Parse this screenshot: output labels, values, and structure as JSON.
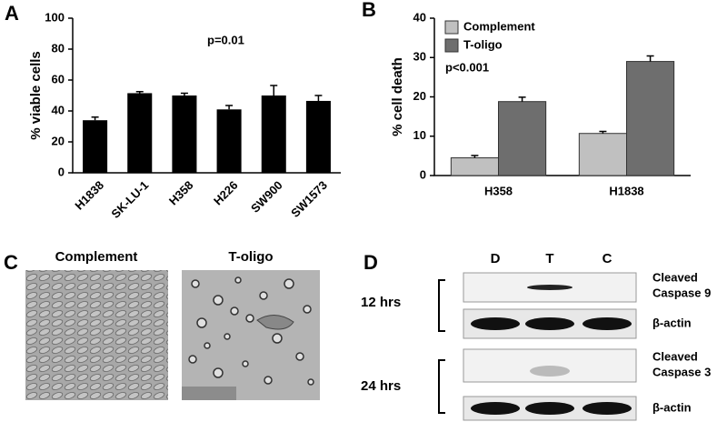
{
  "chart_data": [
    {
      "type": "bar",
      "panel_label": "A",
      "y_label": "% viable cells",
      "annotation": "p=0.01",
      "categories": [
        "H1838",
        "SK-LU-1",
        "H358",
        "H226",
        "SW900",
        "SW1573"
      ],
      "values": [
        34,
        51.5,
        50,
        41,
        50,
        46.5
      ],
      "errors": [
        2,
        1,
        1.5,
        2.5,
        6.5,
        3.5
      ],
      "color": "#000000",
      "ylim": [
        0,
        100
      ],
      "yticks": [
        0,
        20,
        40,
        60,
        80,
        100
      ]
    },
    {
      "type": "grouped_bar",
      "panel_label": "B",
      "y_label": "% cell death",
      "annotation": "p<0.001",
      "categories": [
        "H358",
        "H1838"
      ],
      "series": [
        {
          "name": "Complement",
          "color": "#c0c0c0",
          "values": [
            4.5,
            10.7
          ],
          "errors": [
            0.6,
            0.5
          ]
        },
        {
          "name": "T-oligo",
          "color": "#6e6e6e",
          "values": [
            18.8,
            29
          ],
          "errors": [
            1.1,
            1.4
          ]
        }
      ],
      "ylim": [
        0,
        40
      ],
      "yticks": [
        0,
        10,
        20,
        30,
        40
      ],
      "legend": "upper-left"
    }
  ],
  "panel_c": {
    "panel_label": "C",
    "images": [
      "Complement",
      "T-oligo"
    ]
  },
  "panel_d": {
    "panel_label": "D",
    "lanes": [
      "D",
      "T",
      "C"
    ],
    "timepoints": [
      {
        "label": "12 hrs",
        "blots": [
          [
            "Cleaved",
            "Caspase 9"
          ],
          [
            "β-actin"
          ]
        ]
      },
      {
        "label": "24 hrs",
        "blots": [
          [
            "Cleaved",
            "Caspase 3"
          ],
          [
            "β-actin"
          ]
        ]
      }
    ]
  }
}
